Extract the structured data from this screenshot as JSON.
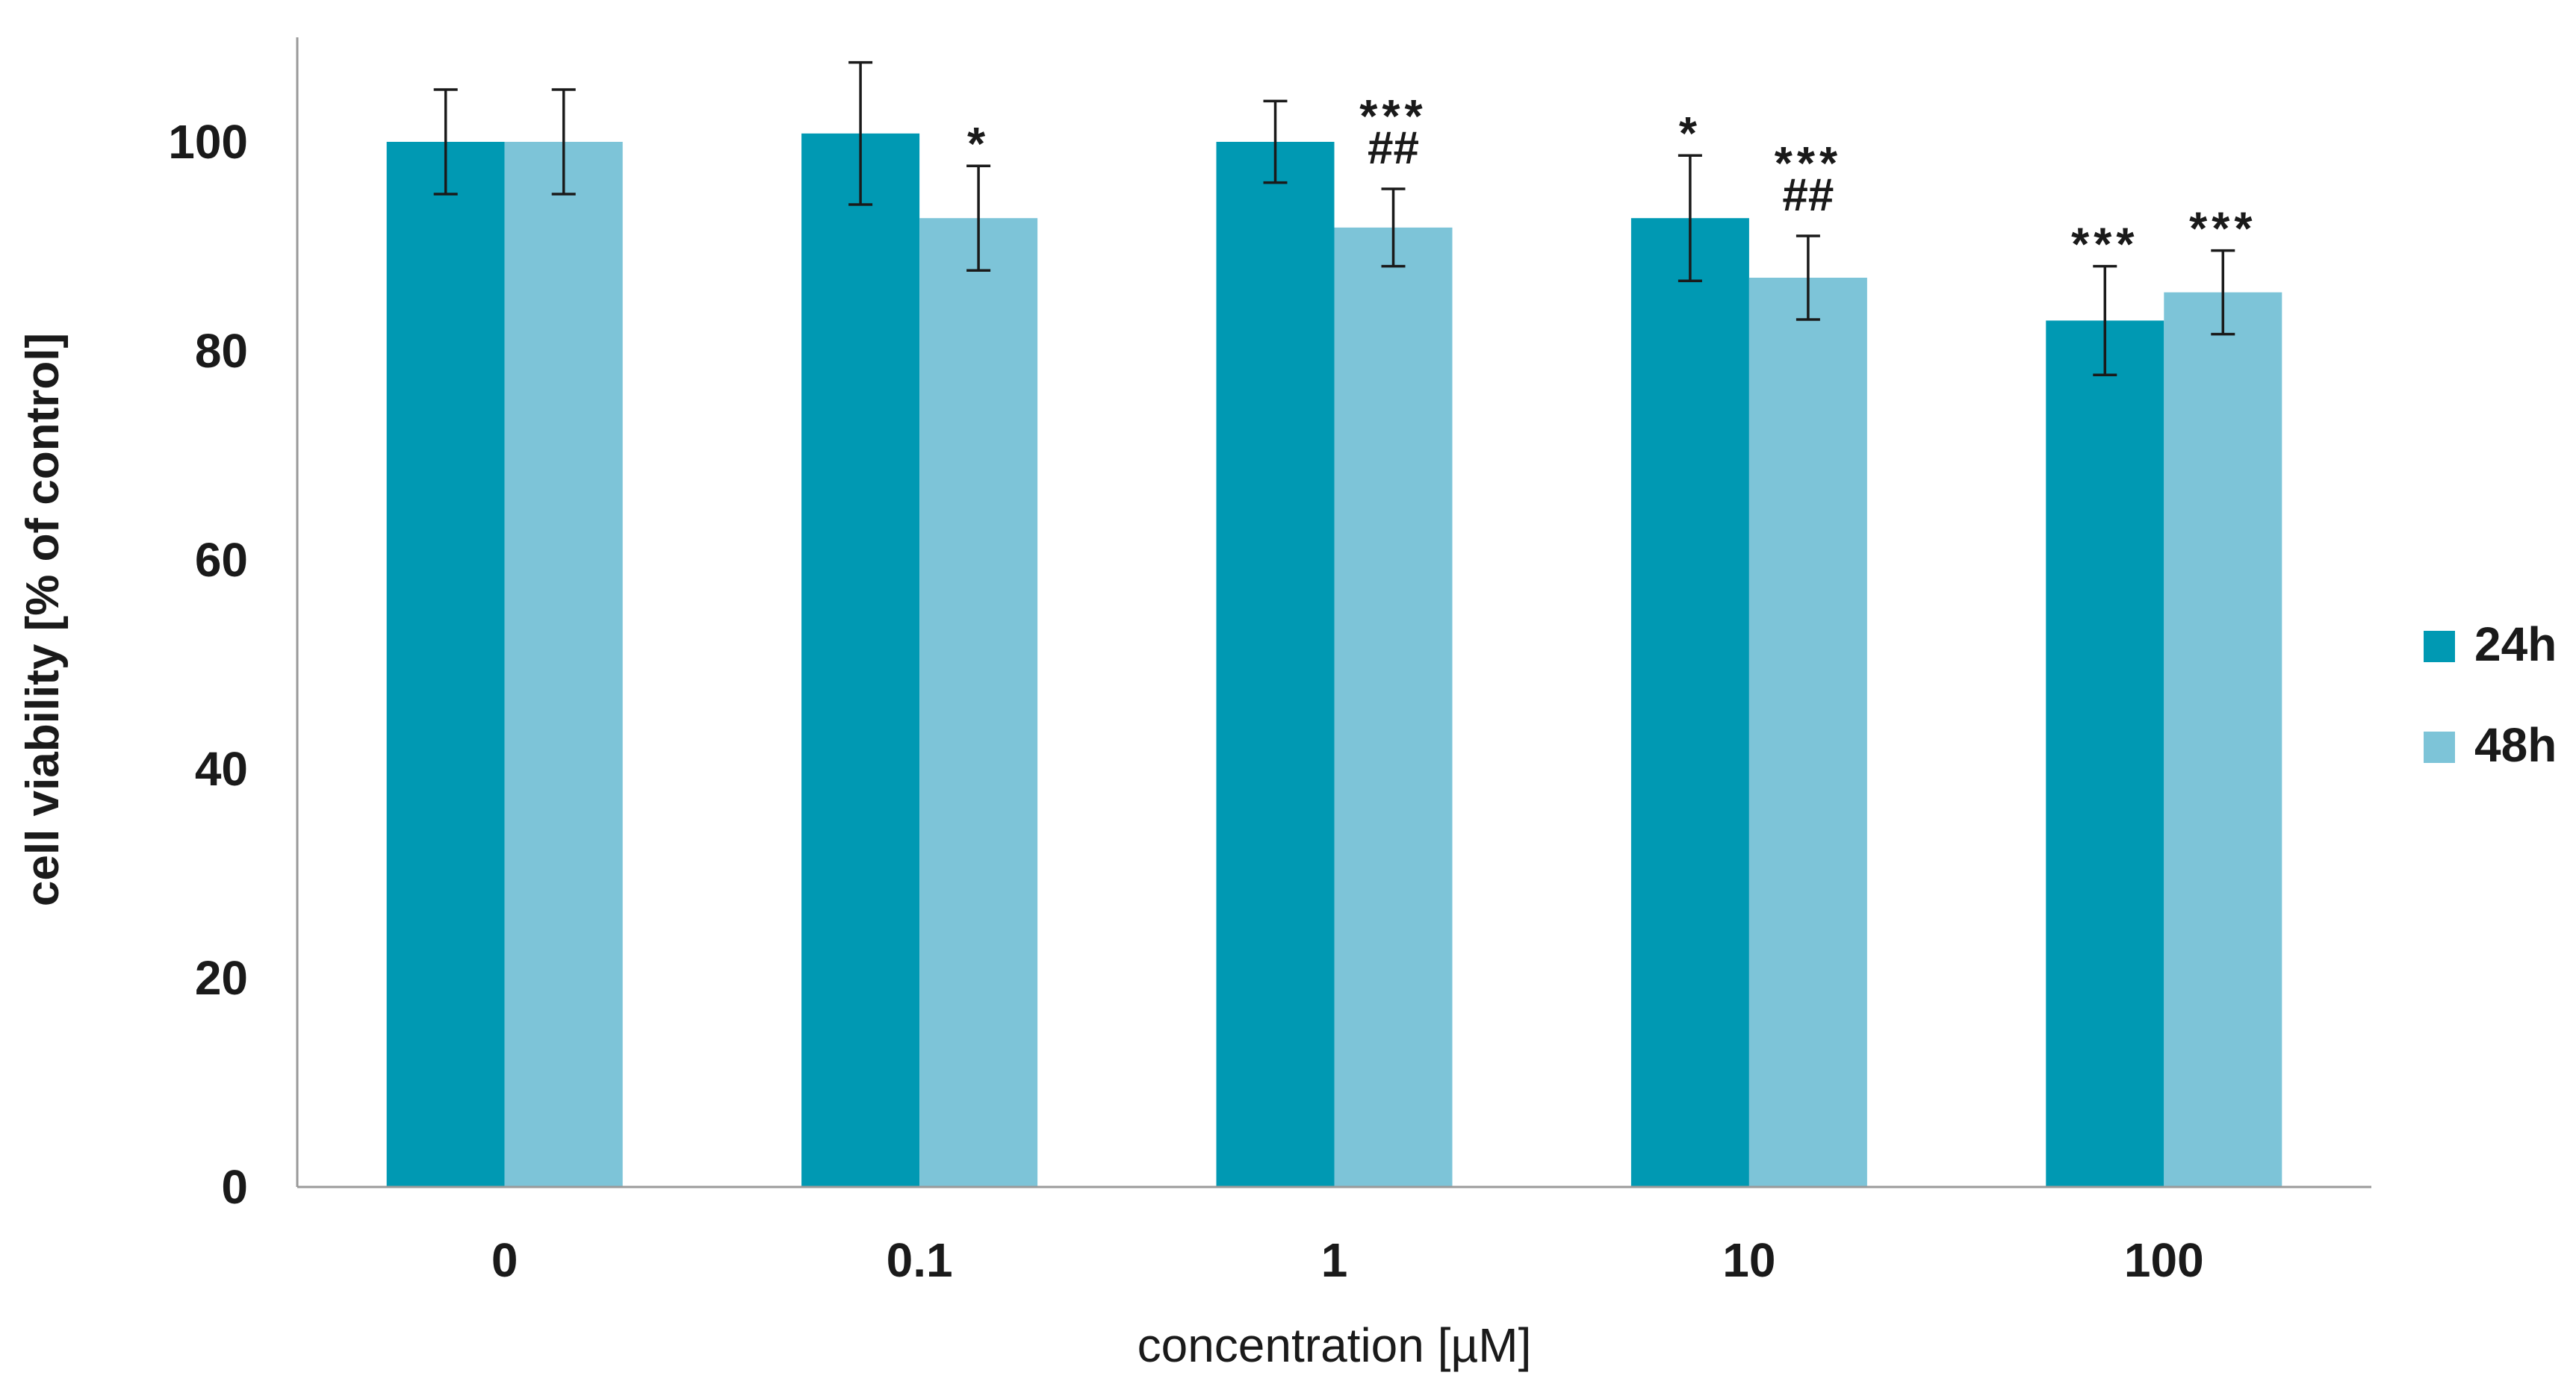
{
  "chart_data": {
    "type": "bar",
    "title": "",
    "xlabel": "concentration [µM]",
    "ylabel": "cell viability [% of control]",
    "ylim": [
      0,
      110
    ],
    "yticks": [
      0,
      20,
      40,
      60,
      80,
      100
    ],
    "categories": [
      "0",
      "0.1",
      "1",
      "10",
      "100"
    ],
    "series": [
      {
        "name": "24h",
        "color": "#0099B3",
        "values": [
          100,
          100.8,
          100,
          92.7,
          82.9
        ],
        "errors": [
          5.0,
          6.8,
          3.9,
          6.0,
          5.2
        ],
        "annotations": [
          "",
          "",
          "",
          "*",
          "***"
        ]
      },
      {
        "name": "48h",
        "color": "#7DC4D8",
        "values": [
          100,
          92.7,
          91.8,
          87.0,
          85.6
        ],
        "errors": [
          5.0,
          5.0,
          3.7,
          4.0,
          4.0
        ],
        "annotations": [
          "",
          "*",
          "***\n##",
          "***\n##",
          "***"
        ]
      }
    ],
    "grid": false,
    "legend_position": "right"
  }
}
